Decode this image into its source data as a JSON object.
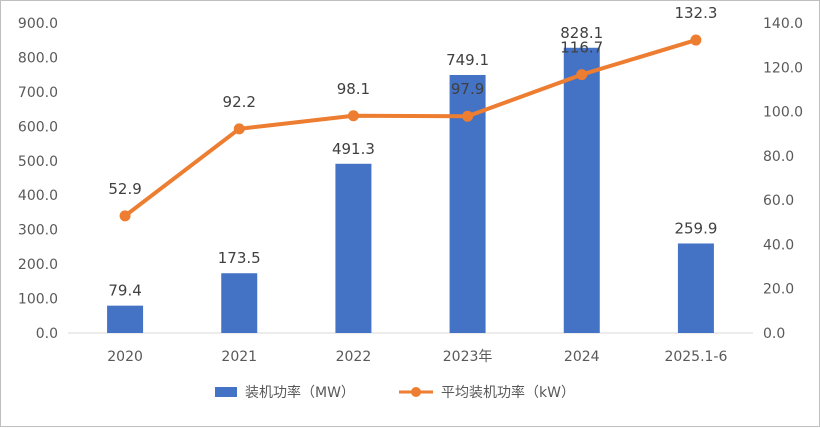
{
  "chart_data": {
    "type": "bar+line",
    "categories": [
      "2020",
      "2021",
      "2022",
      "2023年",
      "2024",
      "2025.1-6"
    ],
    "series": [
      {
        "name": "装机功率（MW）",
        "type": "bar",
        "axis": "left",
        "values": [
          79.4,
          173.5,
          491.3,
          749.1,
          828.1,
          259.9
        ],
        "color": "#4472c4"
      },
      {
        "name": "平均装机功率（kW）",
        "type": "line",
        "axis": "right",
        "values": [
          52.9,
          92.2,
          98.1,
          97.9,
          116.7,
          132.3
        ],
        "color": "#ed7d31"
      }
    ],
    "y_left": {
      "ylim": [
        0,
        900
      ],
      "ticks": [
        "0.0",
        "100.0",
        "200.0",
        "300.0",
        "400.0",
        "500.0",
        "600.0",
        "700.0",
        "800.0",
        "900.0"
      ]
    },
    "y_right": {
      "ylim": [
        0,
        140
      ],
      "ticks": [
        "0.0",
        "20.0",
        "40.0",
        "60.0",
        "80.0",
        "100.0",
        "120.0",
        "140.0"
      ]
    },
    "bar_labels": [
      "79.4",
      "173.5",
      "491.3",
      "749.1",
      "828.1",
      "259.9"
    ],
    "line_labels": [
      "52.9",
      "92.2",
      "98.1",
      "97.9",
      "116.7",
      "132.3"
    ],
    "grid": false,
    "legend": "bottom"
  }
}
